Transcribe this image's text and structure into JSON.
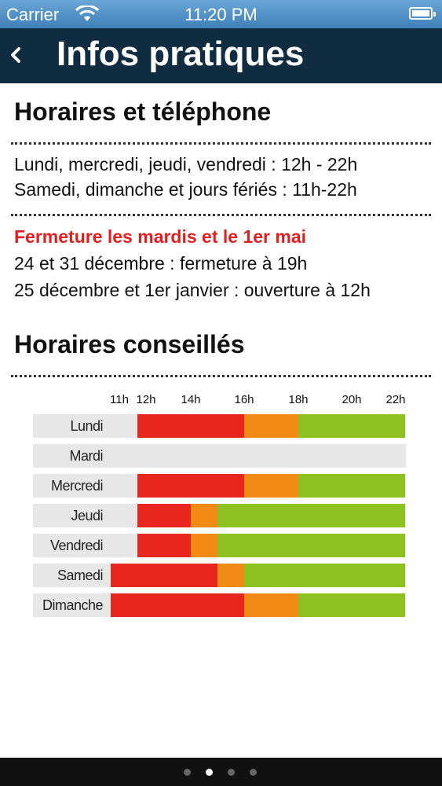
{
  "status": {
    "carrier": "Carrier",
    "time": "11:20 PM"
  },
  "nav": {
    "title": "Infos pratiques"
  },
  "hours": {
    "heading": "Horaires et téléphone",
    "weekday": "Lundi, mercredi, jeudi, vendredi : 12h - 22h",
    "weekend": "Samedi, dimanche et jours fériés : 11h-22h",
    "closure": "Fermeture les mardis et le 1er mai",
    "dec24_31": "24 et 31 décembre : fermeture à 19h",
    "dec25_jan1": "25 décembre et 1er janvier : ouverture à 12h"
  },
  "advice": {
    "heading": "Horaires conseillés"
  },
  "chart_data": {
    "type": "bar",
    "x_ticks": [
      "11h",
      "12h",
      "14h",
      "16h",
      "18h",
      "20h",
      "22h"
    ],
    "x_range": [
      11,
      22
    ],
    "colors": {
      "red": "#e8261e",
      "orange": "#f28a16",
      "green": "#8cc11f",
      "closed": "#e7e7e7"
    },
    "days": [
      {
        "label": "Lundi",
        "segments": [
          {
            "start": 12,
            "end": 16,
            "level": "red"
          },
          {
            "start": 16,
            "end": 18,
            "level": "orange"
          },
          {
            "start": 18,
            "end": 22,
            "level": "green"
          }
        ]
      },
      {
        "label": "Mardi",
        "segments": []
      },
      {
        "label": "Mercredi",
        "segments": [
          {
            "start": 12,
            "end": 16,
            "level": "red"
          },
          {
            "start": 16,
            "end": 18,
            "level": "orange"
          },
          {
            "start": 18,
            "end": 22,
            "level": "green"
          }
        ]
      },
      {
        "label": "Jeudi",
        "segments": [
          {
            "start": 12,
            "end": 14,
            "level": "red"
          },
          {
            "start": 14,
            "end": 15,
            "level": "orange"
          },
          {
            "start": 15,
            "end": 22,
            "level": "green"
          }
        ]
      },
      {
        "label": "Vendredi",
        "segments": [
          {
            "start": 12,
            "end": 14,
            "level": "red"
          },
          {
            "start": 14,
            "end": 15,
            "level": "orange"
          },
          {
            "start": 15,
            "end": 22,
            "level": "green"
          }
        ]
      },
      {
        "label": "Samedi",
        "segments": [
          {
            "start": 11,
            "end": 15,
            "level": "red"
          },
          {
            "start": 15,
            "end": 16,
            "level": "orange"
          },
          {
            "start": 16,
            "end": 22,
            "level": "green"
          }
        ]
      },
      {
        "label": "Dimanche",
        "segments": [
          {
            "start": 11,
            "end": 16,
            "level": "red"
          },
          {
            "start": 16,
            "end": 18,
            "level": "orange"
          },
          {
            "start": 18,
            "end": 22,
            "level": "green"
          }
        ]
      }
    ]
  },
  "pager": {
    "count": 4,
    "active": 2
  }
}
